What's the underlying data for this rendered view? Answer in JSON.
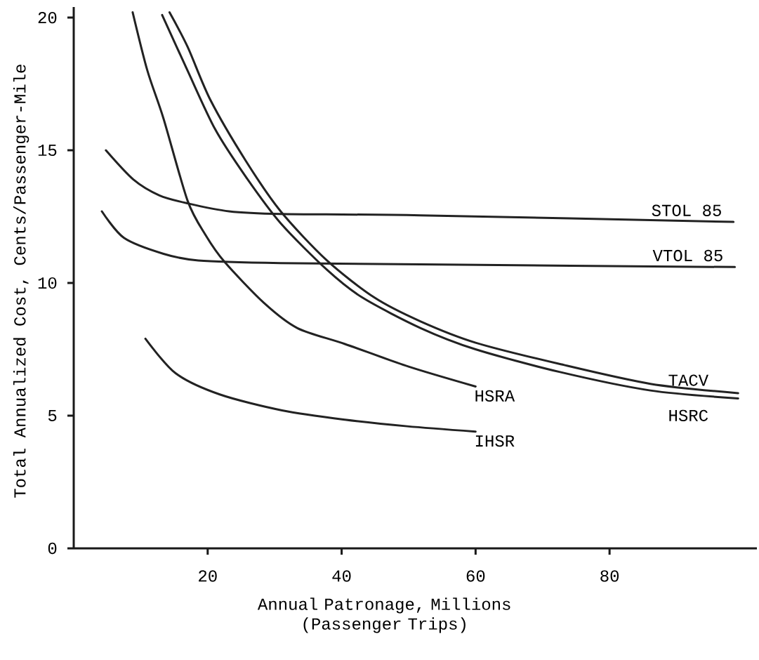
{
  "chart_data": {
    "type": "line",
    "xlabel": "Annual Patronage, Millions (Passenger Trips)",
    "ylabel": "Total Annualized Cost, Cents/Passenger-Mile",
    "xlim": [
      0,
      102
    ],
    "ylim": [
      0,
      20.4
    ],
    "xticks": [
      20,
      40,
      60,
      80
    ],
    "yticks": [
      0,
      5,
      10,
      15,
      20
    ],
    "grid": false,
    "legend": false,
    "marker": "none",
    "line_style": "solid",
    "series": [
      {
        "name": "STOL 85",
        "color": "#222222",
        "x": [
          4.8,
          8.9,
          12.8,
          17.0,
          23.2,
          30.9,
          51.8,
          98.5
        ],
        "values": [
          15.0,
          13.9,
          13.3,
          13.0,
          12.7,
          12.6,
          12.55,
          12.3
        ]
      },
      {
        "name": "VTOL 85",
        "color": "#222222",
        "x": [
          4.2,
          7.5,
          13.4,
          18.6,
          30.9,
          51.8,
          98.7
        ],
        "values": [
          12.7,
          11.7,
          11.1,
          10.85,
          10.75,
          10.7,
          10.6
        ]
      },
      {
        "name": "TACV",
        "color": "#222222",
        "x": [
          14.3,
          17.0,
          20.4,
          25.7,
          30.9,
          37.8,
          44.9,
          51.8,
          60.0,
          72.5,
          86.1,
          99.2
        ],
        "values": [
          20.2,
          18.9,
          16.9,
          14.6,
          12.7,
          10.85,
          9.45,
          8.55,
          7.75,
          6.95,
          6.2,
          5.85
        ]
      },
      {
        "name": "HSRC",
        "color": "#222222",
        "x": [
          13.2,
          17.0,
          21.1,
          25.7,
          30.9,
          37.8,
          43.1,
          51.8,
          60.0,
          72.5,
          86.1,
          99.2
        ],
        "values": [
          20.1,
          18.0,
          15.8,
          14.0,
          12.25,
          10.5,
          9.45,
          8.3,
          7.5,
          6.65,
          5.95,
          5.65
        ]
      },
      {
        "name": "HSRA",
        "color": "#222222",
        "x": [
          8.8,
          11.0,
          13.4,
          17.0,
          19.7,
          22.5,
          28.4,
          33.4,
          40.5,
          50.0,
          60.0
        ],
        "values": [
          20.2,
          18.0,
          16.2,
          13.1,
          11.8,
          10.8,
          9.25,
          8.3,
          7.7,
          6.85,
          6.1
        ]
      },
      {
        "name": "IHSR",
        "color": "#222222",
        "x": [
          10.7,
          15.2,
          21.8,
          31.1,
          40.5,
          49.8,
          60.0
        ],
        "values": [
          7.9,
          6.6,
          5.8,
          5.2,
          4.85,
          4.6,
          4.4
        ]
      }
    ]
  }
}
